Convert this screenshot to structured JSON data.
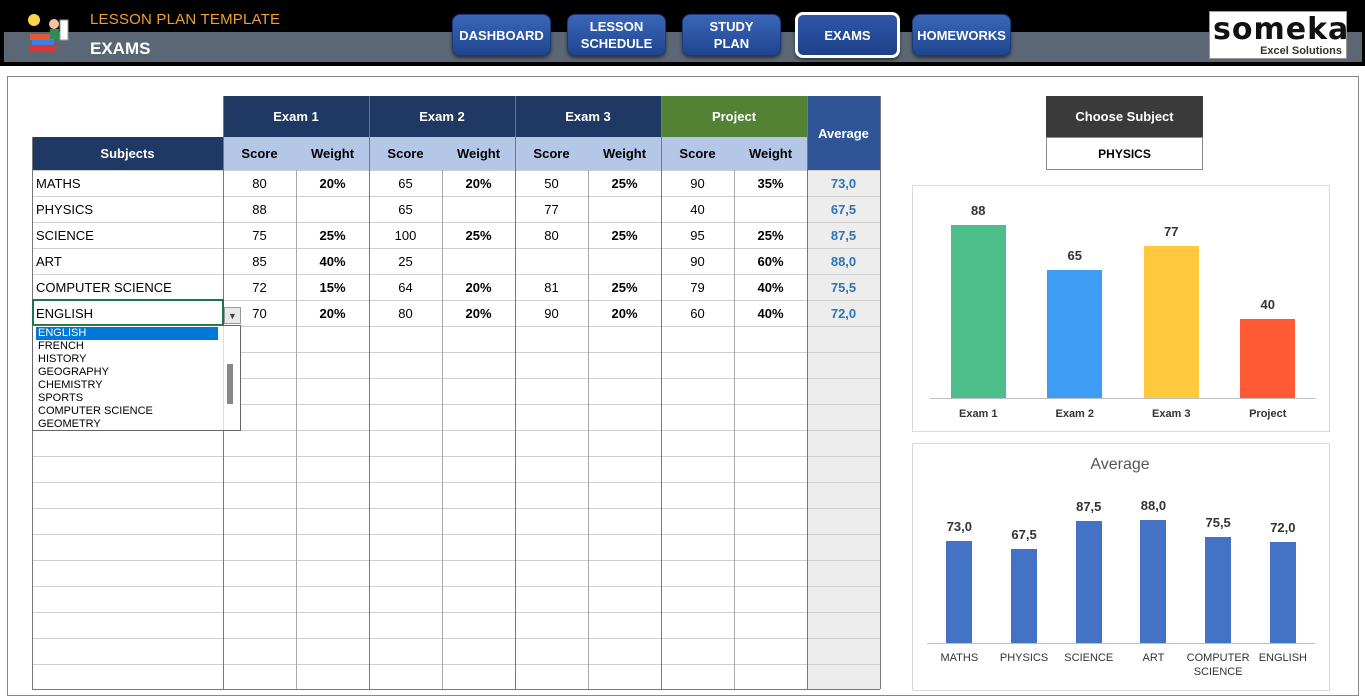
{
  "header": {
    "app_title": "LESSON PLAN TEMPLATE",
    "page_title": "EXAMS",
    "nav": [
      "DASHBOARD",
      "LESSON\nSCHEDULE",
      "STUDY\nPLAN",
      "EXAMS",
      "HOMEWORKS"
    ],
    "active_nav": "EXAMS",
    "brand_name": "someka",
    "brand_sub": "Excel Solutions"
  },
  "table": {
    "group_headers": [
      "Exam 1",
      "Exam 2",
      "Exam 3",
      "Project"
    ],
    "average_header": "Average",
    "subjects_header": "Subjects",
    "sub_headers": [
      "Score",
      "Weight",
      "Score",
      "Weight",
      "Score",
      "Weight",
      "Score",
      "Weight"
    ],
    "rows": [
      {
        "subject": "MATHS",
        "cells": [
          "80",
          "20%",
          "65",
          "20%",
          "50",
          "25%",
          "90",
          "35%"
        ],
        "average": "73,0"
      },
      {
        "subject": "PHYSICS",
        "cells": [
          "88",
          "",
          "65",
          "",
          "77",
          "",
          "40",
          ""
        ],
        "average": "67,5"
      },
      {
        "subject": "SCIENCE",
        "cells": [
          "75",
          "25%",
          "100",
          "25%",
          "80",
          "25%",
          "95",
          "25%"
        ],
        "average": "87,5"
      },
      {
        "subject": "ART",
        "cells": [
          "85",
          "40%",
          "25",
          "",
          "",
          "",
          "90",
          "60%"
        ],
        "average": "88,0"
      },
      {
        "subject": "COMPUTER SCIENCE",
        "cells": [
          "72",
          "15%",
          "64",
          "20%",
          "81",
          "25%",
          "79",
          "40%"
        ],
        "average": "75,5"
      },
      {
        "subject": "ENGLISH",
        "cells": [
          "70",
          "20%",
          "80",
          "20%",
          "90",
          "20%",
          "60",
          "40%"
        ],
        "average": "72,0"
      }
    ]
  },
  "dropdown": {
    "options": [
      "ENGLISH",
      "FRENCH",
      "HISTORY",
      "GEOGRAPHY",
      "CHEMISTRY",
      "SPORTS",
      "COMPUTER SCIENCE",
      "GEOMETRY"
    ],
    "selected": "ENGLISH"
  },
  "choose_subject": {
    "label": "Choose Subject",
    "value": "PHYSICS"
  },
  "chart_data": [
    {
      "type": "bar",
      "categories": [
        "Exam 1",
        "Exam 2",
        "Exam 3",
        "Project"
      ],
      "values": [
        88,
        65,
        77,
        40
      ],
      "colors": [
        "#4dbd8a",
        "#3d9df5",
        "#ffc83d",
        "#ff5a35"
      ],
      "ylim": [
        0,
        100
      ]
    },
    {
      "type": "bar",
      "title": "Average",
      "categories": [
        "MATHS",
        "PHYSICS",
        "SCIENCE",
        "ART",
        "COMPUTER\nSCIENCE",
        "ENGLISH"
      ],
      "values": [
        73.0,
        67.5,
        87.5,
        88.0,
        75.5,
        72.0
      ],
      "value_labels": [
        "73,0",
        "67,5",
        "87,5",
        "88,0",
        "75,5",
        "72,0"
      ],
      "color": "#4472c4",
      "ylim": [
        0,
        100
      ]
    }
  ]
}
